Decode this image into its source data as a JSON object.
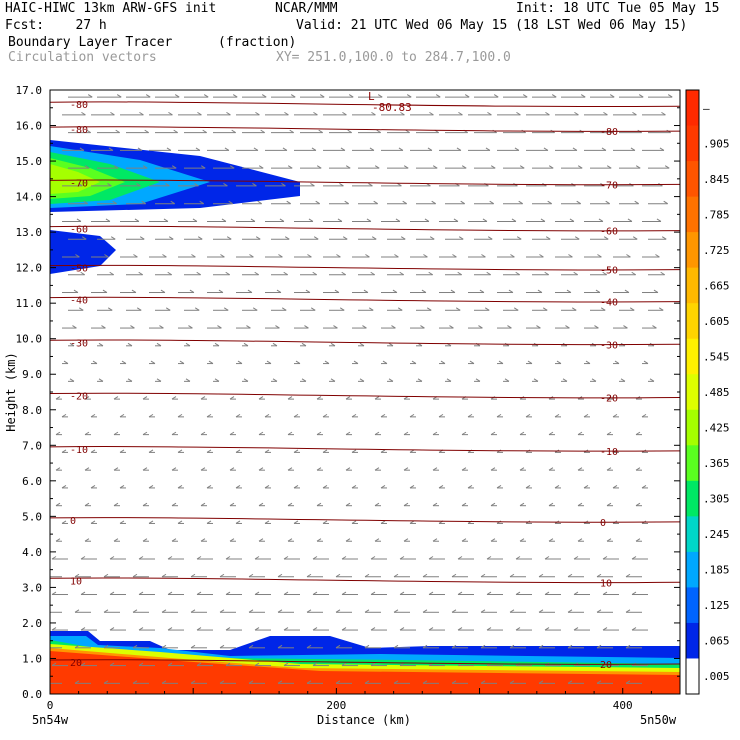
{
  "header": {
    "title_left": "HAIC-HIWC 13km ARW-GFS init",
    "org": "NCAR/MMM",
    "init": "Init: 18 UTC Tue 05 May 15",
    "fcst": "Fcst:    27 h",
    "valid": "Valid: 21 UTC Wed 06 May 15 (18 LST Wed 06 May 15)",
    "field": "Boundary Layer Tracer",
    "field_units": "(fraction)",
    "vectors": "Circulation vectors",
    "xy": "XY= 251.0,100.0 to 284.7,100.0"
  },
  "chart_data": {
    "type": "cross-section",
    "ylabel": "Height (km)",
    "xlabel": "Distance (km)",
    "ylim": [
      0,
      17
    ],
    "xlim": [
      0,
      440
    ],
    "y_ticks": [
      "0.0",
      "1.0",
      "2.0",
      "3.0",
      "4.0",
      "5.0",
      "6.0",
      "7.0",
      "8.0",
      "9.0",
      "10.0",
      "11.0",
      "12.0",
      "13.0",
      "14.0",
      "15.0",
      "16.0",
      "17.0"
    ],
    "x_ticks": [
      {
        "value": 0,
        "label": "0"
      },
      {
        "value": 200,
        "label": "200"
      },
      {
        "value": 400,
        "label": "400"
      }
    ],
    "x_end_labels": {
      "left": "5n54w",
      "right": "5n50w"
    },
    "colorbar": {
      "levels": [
        "–",
        ".905",
        ".845",
        ".785",
        ".725",
        ".665",
        ".605",
        ".545",
        ".485",
        ".425",
        ".365",
        ".305",
        ".245",
        ".185",
        ".125",
        ".065",
        ".005"
      ],
      "colors": [
        "#ff2a00",
        "#ff3a00",
        "#ff5500",
        "#ff7200",
        "#ff9600",
        "#ffb800",
        "#ffd400",
        "#fff000",
        "#ddff00",
        "#a5ff00",
        "#5aff20",
        "#00e864",
        "#00d6c8",
        "#00a8ff",
        "#0064ff",
        "#0026e8",
        "#ffffff"
      ]
    },
    "isotherms": [
      {
        "label": "-80",
        "height": 16.6
      },
      {
        "label": "-80",
        "height": 15.9
      },
      {
        "label": "-70",
        "height": 14.4
      },
      {
        "label": "-60",
        "height": 13.1
      },
      {
        "label": "-50",
        "height": 12.0
      },
      {
        "label": "-40",
        "height": 11.1
      },
      {
        "label": "-30",
        "height": 9.9
      },
      {
        "label": "-20",
        "height": 8.4
      },
      {
        "label": "-10",
        "height": 6.9
      },
      {
        "label": "0",
        "height": 4.9
      },
      {
        "label": "10",
        "height": 3.2
      },
      {
        "label": "20",
        "height": 0.9
      }
    ],
    "low_marker": {
      "symbol": "L",
      "value": "-80.83"
    }
  }
}
